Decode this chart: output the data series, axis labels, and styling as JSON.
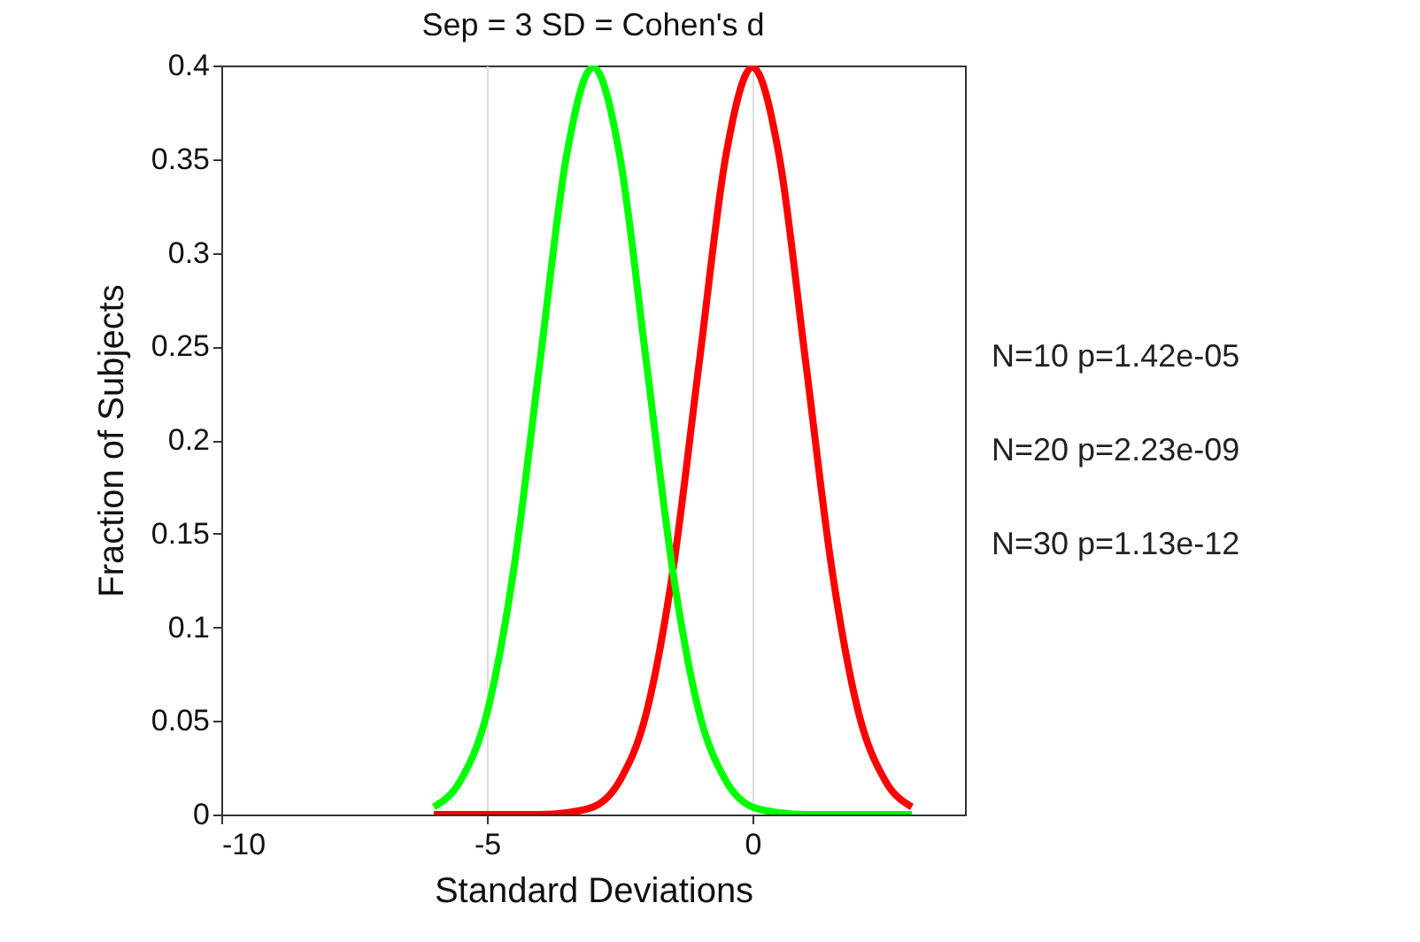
{
  "chart_data": {
    "type": "line",
    "title": "Sep = 3 SD = Cohen's d",
    "xlabel": "Standard Deviations",
    "ylabel": "Fraction of Subjects",
    "x": [
      -6,
      -5.5,
      -5,
      -4.5,
      -4,
      -3.5,
      -3,
      -2.5,
      -2,
      -1.5,
      -1,
      -0.5,
      0,
      0.5,
      1,
      1.5,
      2,
      2.5,
      3
    ],
    "series": [
      {
        "color": "#ff0000",
        "values": [
          0,
          0,
          0,
          0,
          0,
          0.001,
          0.004,
          0.018,
          0.054,
          0.13,
          0.242,
          0.352,
          0.399,
          0.352,
          0.242,
          0.13,
          0.054,
          0.018,
          0.004
        ]
      },
      {
        "color": "#00ff00",
        "values": [
          0.004,
          0.018,
          0.054,
          0.13,
          0.242,
          0.352,
          0.399,
          0.352,
          0.242,
          0.13,
          0.054,
          0.018,
          0.004,
          0.001,
          0,
          0,
          0,
          0,
          0
        ]
      }
    ],
    "xlim": [
      -10,
      4
    ],
    "xticks": [
      -10,
      -5,
      0
    ],
    "ylim": [
      0,
      0.4
    ],
    "yticks": [
      0,
      0.05,
      0.1,
      0.15,
      0.2,
      0.25,
      0.3,
      0.35,
      0.4
    ],
    "grid": "x",
    "line_style": "solid",
    "annotations": [
      "N=10 p=1.42e-05",
      "N=20 p=2.23e-09",
      "N=30 p=1.13e-12"
    ]
  }
}
